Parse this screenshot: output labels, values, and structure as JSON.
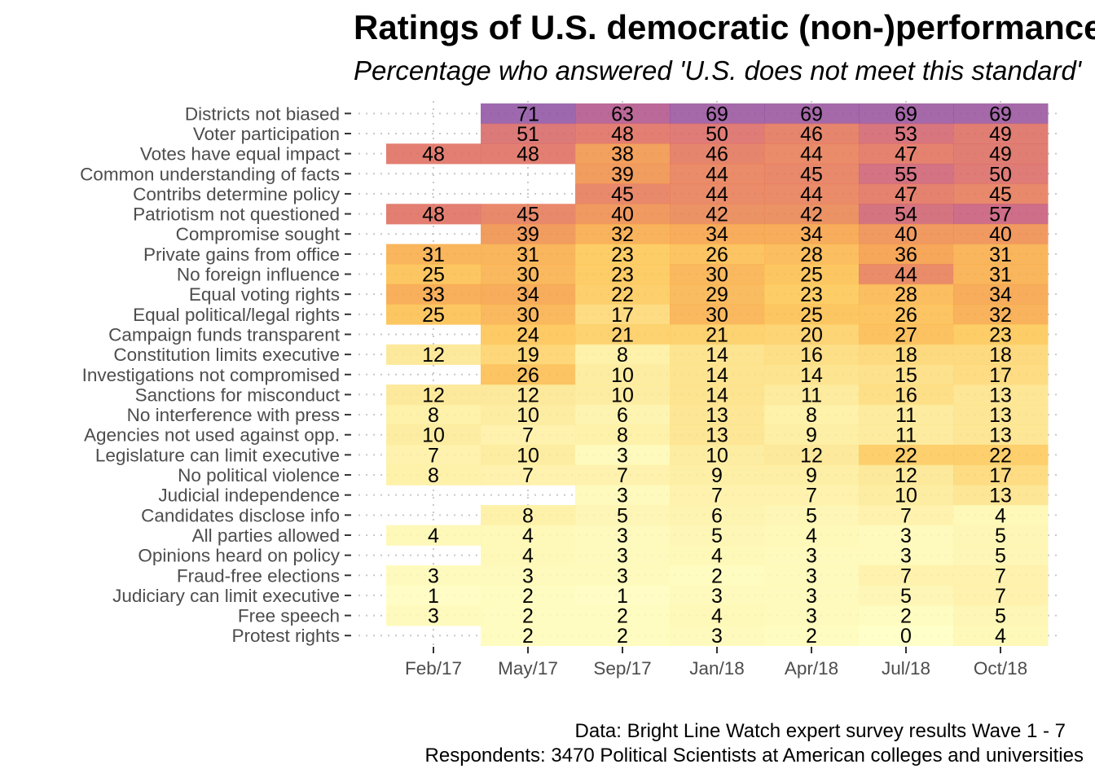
{
  "chart_data": {
    "type": "heatmap",
    "title": "Ratings of U.S. democratic (non-)performance",
    "subtitle": "Percentage who answered 'U.S. does not meet this standard'",
    "caption_lines": [
      "Data: Bright Line Watch expert survey results Wave 1 - 7",
      "Respondents: 3470 Political Scientists at American colleges and universities"
    ],
    "xlabel": "",
    "ylabel": "",
    "x": [
      "Feb/17",
      "May/17",
      "Sep/17",
      "Jan/18",
      "Apr/18",
      "Jul/18",
      "Oct/18"
    ],
    "y": [
      "Districts not biased",
      "Voter participation",
      "Votes have equal impact",
      "Common understanding of facts",
      "Contribs determine policy",
      "Patriotism not questioned",
      "Compromise sought",
      "Private gains from office",
      "No foreign influence",
      "Equal voting rights",
      "Equal political/legal rights",
      "Campaign funds transparent",
      "Constitution limits executive",
      "Investigations not compromised",
      "Sanctions for misconduct",
      "No interference with press",
      "Agencies not used against opp.",
      "Legislature can limit executive",
      "No political violence",
      "Judicial independence",
      "Candidates disclose info",
      "All parties allowed",
      "Opinions heard on policy",
      "Fraud-free elections",
      "Judiciary can limit executive",
      "Free speech",
      "Protest rights"
    ],
    "values": [
      [
        null,
        71,
        63,
        69,
        69,
        69,
        69
      ],
      [
        null,
        51,
        48,
        50,
        46,
        53,
        49
      ],
      [
        48,
        48,
        38,
        46,
        44,
        47,
        49
      ],
      [
        null,
        null,
        39,
        44,
        45,
        55,
        50
      ],
      [
        null,
        null,
        45,
        44,
        44,
        47,
        45
      ],
      [
        48,
        45,
        40,
        42,
        42,
        54,
        57
      ],
      [
        null,
        39,
        32,
        34,
        34,
        40,
        40
      ],
      [
        31,
        31,
        23,
        26,
        28,
        36,
        31
      ],
      [
        25,
        30,
        23,
        30,
        25,
        44,
        31
      ],
      [
        33,
        34,
        22,
        29,
        23,
        28,
        34
      ],
      [
        25,
        30,
        17,
        30,
        25,
        26,
        32
      ],
      [
        null,
        24,
        21,
        21,
        20,
        27,
        23
      ],
      [
        12,
        19,
        8,
        14,
        16,
        18,
        18
      ],
      [
        null,
        26,
        10,
        14,
        14,
        15,
        17
      ],
      [
        12,
        12,
        10,
        14,
        11,
        16,
        13
      ],
      [
        8,
        10,
        6,
        13,
        8,
        11,
        13
      ],
      [
        10,
        7,
        8,
        13,
        9,
        11,
        13
      ],
      [
        7,
        10,
        3,
        10,
        12,
        22,
        22
      ],
      [
        8,
        7,
        7,
        9,
        9,
        12,
        17
      ],
      [
        null,
        null,
        3,
        7,
        7,
        10,
        13
      ],
      [
        null,
        8,
        5,
        6,
        5,
        7,
        4
      ],
      [
        4,
        4,
        3,
        5,
        4,
        3,
        5
      ],
      [
        null,
        4,
        3,
        4,
        3,
        3,
        5
      ],
      [
        3,
        3,
        3,
        2,
        3,
        7,
        7
      ],
      [
        1,
        2,
        1,
        3,
        3,
        5,
        7
      ],
      [
        3,
        2,
        2,
        4,
        3,
        2,
        5
      ],
      [
        null,
        2,
        2,
        3,
        2,
        0,
        4
      ]
    ],
    "value_range": [
      0,
      71
    ],
    "palette": [
      "#ffffbf",
      "#fde68a",
      "#fdc24a",
      "#f59a3c",
      "#e06b57",
      "#c0507a",
      "#8c4ea0"
    ],
    "grid": "dotted",
    "legend": "none"
  }
}
